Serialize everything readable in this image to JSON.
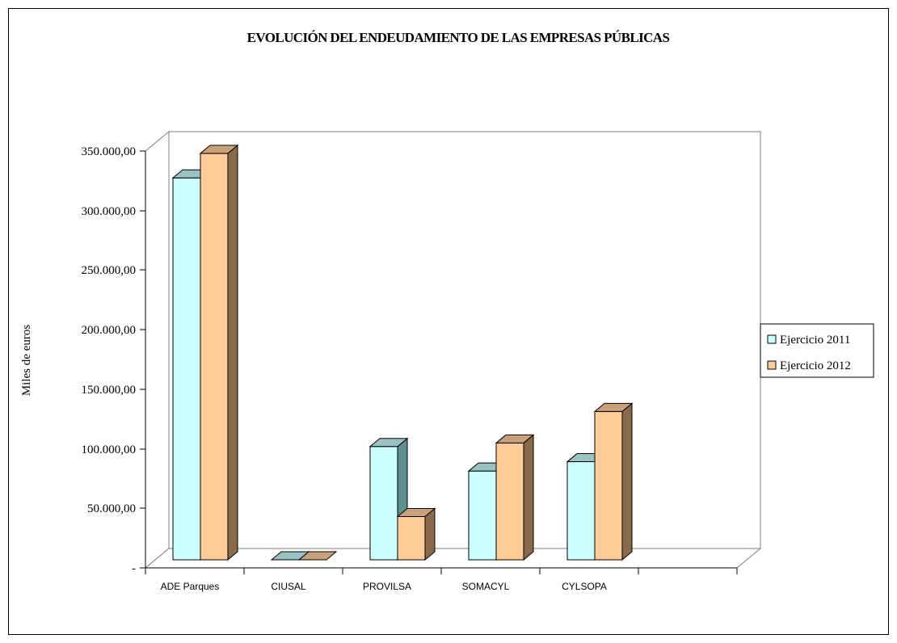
{
  "chart_data": {
    "type": "bar",
    "title": "EVOLUCIÓN DEL ENDEUDAMIENTO DE LAS EMPRESAS PÚBLICAS",
    "xlabel": "",
    "ylabel": "Miles de euros",
    "categories": [
      "ADE Parques",
      "CIUSAL",
      "PROVILSA",
      "SOMACYL",
      "CYLSOPA",
      ""
    ],
    "series": [
      {
        "name": "Ejercicio 2011",
        "values": [
          327000,
          0,
          97000,
          76000,
          84000,
          null
        ],
        "color": "#CCFFFF",
        "side_color": "#5F8F8F",
        "top_color": "#99C2C2"
      },
      {
        "name": "Ejercicio 2012",
        "values": [
          348000,
          0,
          37000,
          100000,
          127000,
          null
        ],
        "color": "#FFCC99",
        "side_color": "#8A6A4A",
        "top_color": "#C9A07A"
      }
    ],
    "ylim": [
      0,
      350000
    ],
    "y_ticks": [
      {
        "value": 0,
        "label": "-"
      },
      {
        "value": 50000,
        "label": "50.000,00"
      },
      {
        "value": 100000,
        "label": "100.000,00"
      },
      {
        "value": 150000,
        "label": "150.000,00"
      },
      {
        "value": 200000,
        "label": "200.000,00"
      },
      {
        "value": 250000,
        "label": "250.000,00"
      },
      {
        "value": 300000,
        "label": "300.000,00"
      },
      {
        "value": 350000,
        "label": "350.000,00"
      }
    ],
    "grid": false,
    "legend": "right",
    "three_d": true
  }
}
